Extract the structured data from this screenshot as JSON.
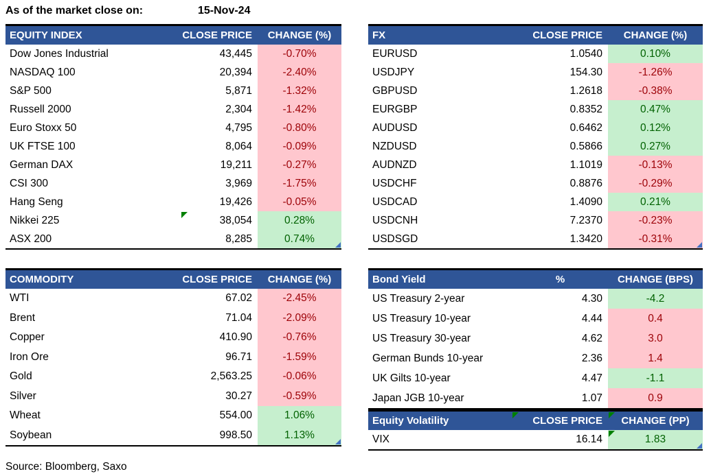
{
  "meta": {
    "as_of_label": "As of the market close on:",
    "as_of_date": "15-Nov-24",
    "source": "Source: Bloomberg, Saxo"
  },
  "colors": {
    "header_bg": "#2F5597",
    "positive_bg": "#C6EFCE",
    "positive_text": "#006100",
    "negative_bg": "#FFC7CE",
    "negative_text": "#9C0006",
    "flag_icon": "#008000",
    "corner_icon": "#4472C4"
  },
  "icons": {
    "cell_flag": "green top-left cell flag triangle",
    "table_corner": "blue bottom-right smart-tag triangle"
  },
  "tables": {
    "equity": {
      "headers": [
        "EQUITY INDEX",
        "CLOSE PRICE",
        "CHANGE (%)"
      ],
      "rows": [
        {
          "name": "Dow Jones Industrial",
          "close": "43,445",
          "change": "-0.70%",
          "dir": "neg"
        },
        {
          "name": "NASDAQ 100",
          "close": "20,394",
          "change": "-2.40%",
          "dir": "neg"
        },
        {
          "name": "S&P 500",
          "close": "5,871",
          "change": "-1.32%",
          "dir": "neg"
        },
        {
          "name": "Russell 2000",
          "close": "2,304",
          "change": "-1.42%",
          "dir": "neg"
        },
        {
          "name": "Euro Stoxx 50",
          "close": "4,795",
          "change": "-0.80%",
          "dir": "neg"
        },
        {
          "name": "UK FTSE 100",
          "close": "8,064",
          "change": "-0.09%",
          "dir": "neg"
        },
        {
          "name": "German DAX",
          "close": "19,211",
          "change": "-0.27%",
          "dir": "neg"
        },
        {
          "name": "CSI 300",
          "close": "3,969",
          "change": "-1.75%",
          "dir": "neg"
        },
        {
          "name": "Hang Seng",
          "close": "19,426",
          "change": "-0.05%",
          "dir": "neg"
        },
        {
          "name": "Nikkei 225",
          "close": "38,054",
          "change": "0.28%",
          "dir": "pos",
          "flag_close": true
        },
        {
          "name": "ASX 200",
          "close": "8,285",
          "change": "0.74%",
          "dir": "pos",
          "corner": true
        }
      ]
    },
    "fx": {
      "headers": [
        "FX",
        "CLOSE PRICE",
        "CHANGE (%)"
      ],
      "rows": [
        {
          "name": "EURUSD",
          "close": "1.0540",
          "change": "0.10%",
          "dir": "pos"
        },
        {
          "name": "USDJPY",
          "close": "154.30",
          "change": "-1.26%",
          "dir": "neg"
        },
        {
          "name": "GBPUSD",
          "close": "1.2618",
          "change": "-0.38%",
          "dir": "neg"
        },
        {
          "name": "EURGBP",
          "close": "0.8352",
          "change": "0.47%",
          "dir": "pos"
        },
        {
          "name": "AUDUSD",
          "close": "0.6462",
          "change": "0.12%",
          "dir": "pos"
        },
        {
          "name": "NZDUSD",
          "close": "0.5866",
          "change": "0.27%",
          "dir": "pos"
        },
        {
          "name": "AUDNZD",
          "close": "1.1019",
          "change": "-0.13%",
          "dir": "neg"
        },
        {
          "name": "USDCHF",
          "close": "0.8876",
          "change": "-0.29%",
          "dir": "neg"
        },
        {
          "name": "USDCAD",
          "close": "1.4090",
          "change": "0.21%",
          "dir": "pos"
        },
        {
          "name": "USDCNH",
          "close": "7.2370",
          "change": "-0.23%",
          "dir": "neg"
        },
        {
          "name": "USDSGD",
          "close": "1.3420",
          "change": "-0.31%",
          "dir": "neg",
          "corner": true
        }
      ]
    },
    "commodity": {
      "headers": [
        "COMMODITY",
        "CLOSE PRICE",
        "CHANGE (%)"
      ],
      "rows": [
        {
          "name": "WTI",
          "close": "67.02",
          "change": "-2.45%",
          "dir": "neg"
        },
        {
          "name": "Brent",
          "close": "71.04",
          "change": "-2.09%",
          "dir": "neg"
        },
        {
          "name": "Copper",
          "close": "410.90",
          "change": "-0.76%",
          "dir": "neg"
        },
        {
          "name": "Iron Ore",
          "close": "96.71",
          "change": "-1.59%",
          "dir": "neg"
        },
        {
          "name": "Gold",
          "close": "2,563.25",
          "change": "-0.06%",
          "dir": "neg"
        },
        {
          "name": "Silver",
          "close": "30.27",
          "change": "-0.59%",
          "dir": "neg"
        },
        {
          "name": "Wheat",
          "close": "554.00",
          "change": "1.06%",
          "dir": "pos"
        },
        {
          "name": "Soybean",
          "close": "998.50",
          "change": "1.13%",
          "dir": "pos",
          "corner": true
        }
      ]
    },
    "bond": {
      "headers": [
        "Bond Yield",
        "%",
        "CHANGE (BPS)"
      ],
      "rows": [
        {
          "name": "US Treasury 2-year",
          "close": "4.30",
          "change": "-4.2",
          "dir": "pos"
        },
        {
          "name": "US Treasury 10-year",
          "close": "4.44",
          "change": "0.4",
          "dir": "neg"
        },
        {
          "name": "US Treasury 30-year",
          "close": "4.62",
          "change": "3.0",
          "dir": "neg"
        },
        {
          "name": "German Bunds 10-year",
          "close": "2.36",
          "change": "1.4",
          "dir": "neg"
        },
        {
          "name": "UK Gilts 10-year",
          "close": "4.47",
          "change": "-1.1",
          "dir": "pos"
        },
        {
          "name": "Japan JGB 10-year",
          "close": "1.07",
          "change": "0.9",
          "dir": "neg"
        }
      ]
    },
    "volatility": {
      "headers": [
        "Equity Volatility",
        "CLOSE PRICE",
        "CHANGE (PP)"
      ],
      "rows": [
        {
          "name": "VIX",
          "close": "16.14",
          "change": "1.83",
          "dir": "pos",
          "flag_change": true,
          "corner": true
        }
      ]
    }
  }
}
